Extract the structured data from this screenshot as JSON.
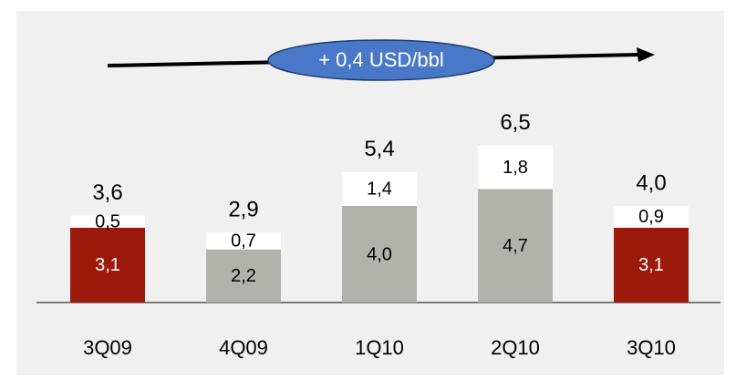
{
  "chart_data": {
    "type": "bar",
    "stacked": true,
    "annotation": "+ 0,4 USD/bbl",
    "categories": [
      "3Q09",
      "4Q09",
      "1Q10",
      "2Q10",
      "3Q10"
    ],
    "series": [
      {
        "colors": [
          "#9c1a0c",
          "#b2b2ac",
          "#b2b2ac",
          "#b2b2ac",
          "#9c1a0c"
        ],
        "label_colors": [
          "#ffffff",
          "#000000",
          "#000000",
          "#000000",
          "#ffffff"
        ],
        "values": [
          3.1,
          2.2,
          4.0,
          4.7,
          3.1
        ],
        "value_labels": [
          "3,1",
          "2,2",
          "4,0",
          "4,7",
          "3,1"
        ]
      },
      {
        "color": "#ffffff",
        "values": [
          0.5,
          0.7,
          1.4,
          1.8,
          0.9
        ],
        "value_labels": [
          "0,5",
          "0,7",
          "1,4",
          "1,8",
          "0,9"
        ]
      }
    ],
    "totals": {
      "values": [
        3.6,
        2.9,
        5.4,
        6.5,
        4.0
      ],
      "value_labels": [
        "3,6",
        "2,9",
        "5,4",
        "6,5",
        "4,0"
      ]
    }
  }
}
